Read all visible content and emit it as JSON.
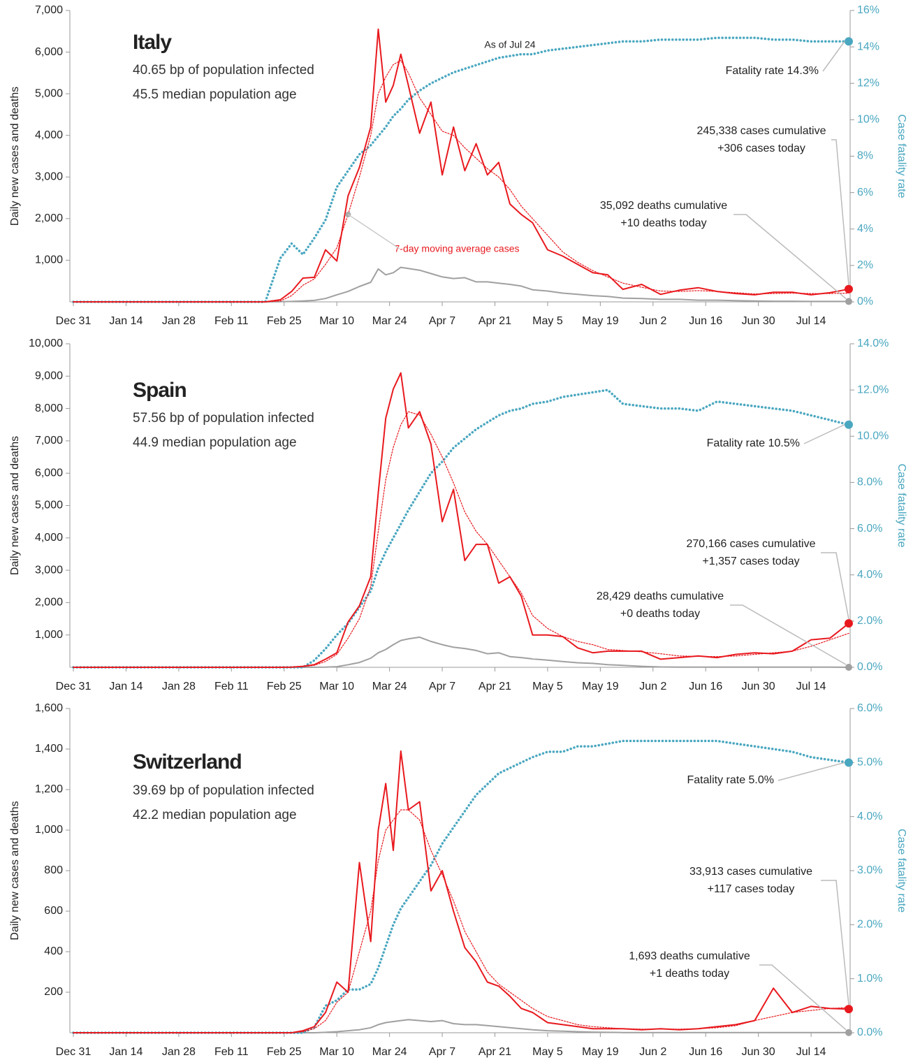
{
  "chart_data": [
    {
      "type": "line",
      "title": "Italy",
      "annotations": {
        "infected": "40.65 bp of population infected",
        "age": "45.5 median population age",
        "fatality": "Fatality rate 14.3%",
        "cases_cum": "245,338 cases cumulative",
        "cases_today": "+306 cases today",
        "deaths_cum": "35,092 deaths cumulative",
        "deaths_today": "+10 deaths today",
        "as_of": "As of Jul 24",
        "ma_label": "7-day moving average cases"
      },
      "y_label": "Daily new cases and deaths",
      "y2_label": "Case fatality rate",
      "xlim": [
        "Dec 31",
        "Jul 24"
      ],
      "xticks": [
        "Dec 31",
        "Jan 14",
        "Jan 28",
        "Feb 11",
        "Feb 25",
        "Mar 10",
        "Mar 24",
        "Apr 7",
        "Apr 21",
        "May 5",
        "May 19",
        "Jun 2",
        "Jun 16",
        "Jun 30",
        "Jul 14"
      ],
      "ylim": [
        0,
        7000
      ],
      "yticks": [
        {
          "value": 1000,
          "label": "1,000"
        },
        {
          "value": 2000,
          "label": "2,000"
        },
        {
          "value": 3000,
          "label": "3,000"
        },
        {
          "value": 4000,
          "label": "4,000"
        },
        {
          "value": 5000,
          "label": "5,000"
        },
        {
          "value": 6000,
          "label": "6,000"
        },
        {
          "value": 7000,
          "label": "7,000"
        }
      ],
      "y2lim": [
        0,
        16
      ],
      "y2ticks": [
        {
          "value": 0,
          "label": "0%"
        },
        {
          "value": 2,
          "label": "2%"
        },
        {
          "value": 4,
          "label": "4%"
        },
        {
          "value": 6,
          "label": "6%"
        },
        {
          "value": 8,
          "label": "8%"
        },
        {
          "value": 10,
          "label": "10%"
        },
        {
          "value": 12,
          "label": "12%"
        },
        {
          "value": 14,
          "label": "14%"
        },
        {
          "value": 16,
          "label": "16%"
        }
      ],
      "x": [
        "Dec 31",
        "Feb 20",
        "Feb 24",
        "Feb 27",
        "Mar 1",
        "Mar 4",
        "Mar 7",
        "Mar 10",
        "Mar 13",
        "Mar 16",
        "Mar 19",
        "Mar 21",
        "Mar 23",
        "Mar 25",
        "Mar 27",
        "Mar 29",
        "Apr 1",
        "Apr 4",
        "Apr 7",
        "Apr 10",
        "Apr 13",
        "Apr 16",
        "Apr 19",
        "Apr 22",
        "Apr 25",
        "Apr 28",
        "May 1",
        "May 5",
        "May 9",
        "May 13",
        "May 17",
        "May 21",
        "May 25",
        "May 30",
        "Jun 4",
        "Jun 9",
        "Jun 14",
        "Jun 19",
        "Jun 24",
        "Jun 29",
        "Jul 4",
        "Jul 9",
        "Jul 14",
        "Jul 19",
        "Jul 24"
      ],
      "series": [
        {
          "name": "Cases",
          "color": "#e8191e",
          "values": [
            0,
            0,
            50,
            250,
            570,
            590,
            1250,
            980,
            2550,
            3230,
            4200,
            6550,
            4800,
            5200,
            5950,
            5200,
            4050,
            4800,
            3050,
            4200,
            3150,
            3800,
            3050,
            3350,
            2350,
            2100,
            1900,
            1250,
            1100,
            900,
            700,
            650,
            300,
            420,
            180,
            280,
            340,
            250,
            200,
            170,
            230,
            230,
            170,
            220,
            306
          ]
        },
        {
          "name": "7-day moving average cases",
          "color": "#e8191e",
          "values": [
            0,
            0,
            20,
            150,
            400,
            550,
            900,
            1300,
            2100,
            3000,
            4000,
            5000,
            5400,
            5700,
            5800,
            5500,
            4900,
            4500,
            4100,
            4000,
            3700,
            3450,
            3200,
            3000,
            2700,
            2300,
            2000,
            1600,
            1200,
            950,
            750,
            600,
            450,
            350,
            260,
            250,
            270,
            250,
            220,
            190,
            200,
            210,
            200,
            200,
            210
          ]
        },
        {
          "name": "Deaths",
          "color": "#a0a0a0",
          "values": [
            0,
            0,
            3,
            10,
            20,
            35,
            80,
            170,
            250,
            370,
            470,
            790,
            650,
            700,
            830,
            800,
            760,
            680,
            600,
            560,
            580,
            480,
            480,
            450,
            420,
            380,
            290,
            260,
            210,
            180,
            150,
            130,
            90,
            80,
            60,
            60,
            40,
            40,
            30,
            20,
            15,
            15,
            10,
            10,
            10
          ]
        },
        {
          "name": "Case fatality rate",
          "color": "#4aa7c0",
          "axis": "y2",
          "values": [
            0,
            0,
            2.4,
            3.2,
            2.6,
            3.5,
            4.5,
            6.3,
            7.2,
            8.1,
            8.6,
            9.1,
            9.6,
            10.2,
            10.6,
            11.1,
            11.6,
            12.0,
            12.3,
            12.6,
            12.8,
            13.0,
            13.2,
            13.4,
            13.5,
            13.6,
            13.6,
            13.8,
            13.9,
            14.0,
            14.1,
            14.2,
            14.3,
            14.3,
            14.4,
            14.4,
            14.4,
            14.5,
            14.5,
            14.5,
            14.4,
            14.4,
            14.3,
            14.3,
            14.3
          ]
        }
      ]
    },
    {
      "type": "line",
      "title": "Spain",
      "annotations": {
        "infected": "57.56 bp of population infected",
        "age": "44.9 median population age",
        "fatality": "Fatality rate 10.5%",
        "cases_cum": "270,166 cases cumulative",
        "cases_today": "+1,357 cases today",
        "deaths_cum": "28,429 deaths cumulative",
        "deaths_today": "+0 deaths today"
      },
      "y_label": "Daily new cases and deaths",
      "y2_label": "Case fatality rate",
      "xlim": [
        "Dec 31",
        "Jul 24"
      ],
      "xticks": [
        "Dec 31",
        "Jan 14",
        "Jan 28",
        "Feb 11",
        "Feb 25",
        "Mar 10",
        "Mar 24",
        "Apr 7",
        "Apr 21",
        "May 5",
        "May 19",
        "Jun 2",
        "Jun 16",
        "Jun 30",
        "Jul 14"
      ],
      "ylim": [
        0,
        10000
      ],
      "yticks": [
        {
          "value": 1000,
          "label": "1,000"
        },
        {
          "value": 2000,
          "label": "2,000"
        },
        {
          "value": 3000,
          "label": "3,000"
        },
        {
          "value": 4000,
          "label": "4,000"
        },
        {
          "value": 5000,
          "label": "5,000"
        },
        {
          "value": 6000,
          "label": "6,000"
        },
        {
          "value": 7000,
          "label": "7,000"
        },
        {
          "value": 8000,
          "label": "8,000"
        },
        {
          "value": 9000,
          "label": "9,000"
        },
        {
          "value": 10000,
          "label": "10,000"
        }
      ],
      "y2lim": [
        0,
        14
      ],
      "y2ticks": [
        {
          "value": 0,
          "label": "0.0%"
        },
        {
          "value": 2,
          "label": "2.0%"
        },
        {
          "value": 4,
          "label": "4.0%"
        },
        {
          "value": 6,
          "label": "6.0%"
        },
        {
          "value": 8,
          "label": "8.0%"
        },
        {
          "value": 10,
          "label": "10.0%"
        },
        {
          "value": 12,
          "label": "12.0%"
        },
        {
          "value": 14,
          "label": "14.0%"
        }
      ],
      "x": [
        "Dec 31",
        "Feb 20",
        "Feb 24",
        "Feb 27",
        "Mar 1",
        "Mar 4",
        "Mar 7",
        "Mar 10",
        "Mar 13",
        "Mar 16",
        "Mar 19",
        "Mar 21",
        "Mar 23",
        "Mar 25",
        "Mar 27",
        "Mar 29",
        "Apr 1",
        "Apr 4",
        "Apr 7",
        "Apr 10",
        "Apr 13",
        "Apr 16",
        "Apr 19",
        "Apr 22",
        "Apr 25",
        "Apr 28",
        "May 1",
        "May 5",
        "May 9",
        "May 13",
        "May 17",
        "May 21",
        "May 25",
        "May 30",
        "Jun 4",
        "Jun 9",
        "Jun 14",
        "Jun 19",
        "Jun 24",
        "Jun 29",
        "Jul 4",
        "Jul 9",
        "Jul 14",
        "Jul 19",
        "Jul 24"
      ],
      "series": [
        {
          "name": "Cases",
          "color": "#e8191e",
          "values": [
            0,
            0,
            0,
            5,
            30,
            80,
            250,
            450,
            1400,
            1900,
            2800,
            5400,
            7700,
            8600,
            9100,
            7400,
            7900,
            6900,
            4500,
            5500,
            3300,
            3800,
            3800,
            2600,
            2800,
            2200,
            1000,
            1000,
            950,
            600,
            450,
            500,
            500,
            500,
            250,
            300,
            350,
            300,
            400,
            450,
            420,
            500,
            850,
            900,
            1357
          ]
        },
        {
          "name": "7-day moving average cases",
          "color": "#e8191e",
          "values": [
            0,
            0,
            0,
            5,
            20,
            60,
            180,
            400,
            900,
            1500,
            2500,
            4200,
            5800,
            6800,
            7500,
            7900,
            7800,
            7200,
            6500,
            5700,
            4800,
            4200,
            3800,
            3300,
            2800,
            2300,
            1600,
            1200,
            950,
            800,
            700,
            550,
            520,
            480,
            420,
            350,
            340,
            330,
            350,
            400,
            450,
            500,
            650,
            850,
            1050
          ]
        },
        {
          "name": "Deaths",
          "color": "#a0a0a0",
          "values": [
            0,
            0,
            0,
            0,
            0,
            2,
            5,
            20,
            80,
            150,
            280,
            450,
            550,
            700,
            830,
            880,
            930,
            800,
            700,
            620,
            580,
            520,
            420,
            450,
            330,
            300,
            260,
            220,
            180,
            140,
            120,
            80,
            60,
            30,
            10,
            5,
            5,
            5,
            5,
            5,
            5,
            5,
            5,
            5,
            0
          ]
        },
        {
          "name": "Case fatality rate",
          "color": "#4aa7c0",
          "axis": "y2",
          "values": [
            0,
            0,
            0,
            0,
            0,
            0.3,
            0.8,
            1.4,
            1.9,
            2.6,
            3.3,
            4.3,
            5.0,
            5.6,
            6.2,
            6.8,
            7.6,
            8.4,
            8.9,
            9.5,
            9.9,
            10.3,
            10.6,
            10.9,
            11.1,
            11.2,
            11.4,
            11.5,
            11.7,
            11.8,
            11.9,
            12.0,
            11.4,
            11.3,
            11.2,
            11.2,
            11.1,
            11.5,
            11.4,
            11.3,
            11.2,
            11.1,
            10.9,
            10.7,
            10.5
          ]
        }
      ]
    },
    {
      "type": "line",
      "title": "Switzerland",
      "annotations": {
        "infected": "39.69 bp of population infected",
        "age": "42.2 median population age",
        "fatality": "Fatality rate 5.0%",
        "cases_cum": "33,913 cases cumulative",
        "cases_today": "+117 cases today",
        "deaths_cum": "1,693 deaths cumulative",
        "deaths_today": "+1 deaths today"
      },
      "y_label": "Daily new cases and deaths",
      "y2_label": "Case fatality rate",
      "xlim": [
        "Dec 31",
        "Jul 24"
      ],
      "xticks": [
        "Dec 31",
        "Jan 14",
        "Jan 28",
        "Feb 11",
        "Feb 25",
        "Mar 10",
        "Mar 24",
        "Apr 7",
        "Apr 21",
        "May 5",
        "May 19",
        "Jun 2",
        "Jun 16",
        "Jun 30",
        "Jul 14"
      ],
      "ylim": [
        0,
        1600
      ],
      "yticks": [
        200,
        400,
        600,
        800,
        {
          "value": 1000,
          "label": "1,000"
        },
        {
          "value": 1200,
          "label": "1,200"
        },
        {
          "value": 1400,
          "label": "1,400"
        },
        {
          "value": 1600,
          "label": "1,600"
        }
      ],
      "y2lim": [
        0,
        6
      ],
      "y2ticks": [
        {
          "value": 0,
          "label": "0.0%"
        },
        {
          "value": 1,
          "label": "1.0%"
        },
        {
          "value": 2,
          "label": "2.0%"
        },
        {
          "value": 3,
          "label": "3.0%"
        },
        {
          "value": 4,
          "label": "4.0%"
        },
        {
          "value": 5,
          "label": "5.0%"
        },
        {
          "value": 6,
          "label": "6.0%"
        }
      ],
      "x": [
        "Dec 31",
        "Feb 20",
        "Feb 24",
        "Feb 27",
        "Mar 1",
        "Mar 4",
        "Mar 7",
        "Mar 10",
        "Mar 13",
        "Mar 16",
        "Mar 19",
        "Mar 21",
        "Mar 23",
        "Mar 25",
        "Mar 27",
        "Mar 29",
        "Apr 1",
        "Apr 4",
        "Apr 7",
        "Apr 10",
        "Apr 13",
        "Apr 16",
        "Apr 19",
        "Apr 22",
        "Apr 25",
        "Apr 28",
        "May 1",
        "May 5",
        "May 9",
        "May 13",
        "May 17",
        "May 21",
        "May 25",
        "May 30",
        "Jun 4",
        "Jun 9",
        "Jun 14",
        "Jun 19",
        "Jun 24",
        "Jun 29",
        "Jul 4",
        "Jul 9",
        "Jul 14",
        "Jul 19",
        "Jul 24"
      ],
      "series": [
        {
          "name": "Cases",
          "color": "#e8191e",
          "values": [
            0,
            0,
            0,
            0,
            10,
            30,
            100,
            250,
            200,
            840,
            450,
            1000,
            1230,
            900,
            1390,
            1100,
            1140,
            700,
            800,
            600,
            420,
            350,
            250,
            230,
            180,
            120,
            100,
            50,
            40,
            30,
            20,
            20,
            20,
            15,
            20,
            15,
            20,
            30,
            40,
            60,
            220,
            100,
            130,
            120,
            117
          ]
        },
        {
          "name": "7-day moving average cases",
          "color": "#e8191e",
          "values": [
            0,
            0,
            0,
            0,
            5,
            20,
            60,
            150,
            200,
            400,
            600,
            850,
            1000,
            1050,
            1100,
            1100,
            1050,
            900,
            780,
            650,
            500,
            400,
            300,
            240,
            200,
            160,
            120,
            80,
            60,
            40,
            30,
            25,
            20,
            18,
            18,
            18,
            20,
            25,
            35,
            60,
            80,
            100,
            110,
            120,
            125
          ]
        },
        {
          "name": "Deaths",
          "color": "#a0a0a0",
          "values": [
            0,
            0,
            0,
            0,
            0,
            0,
            2,
            5,
            10,
            15,
            25,
            40,
            50,
            55,
            60,
            65,
            60,
            55,
            60,
            45,
            40,
            40,
            35,
            30,
            25,
            20,
            15,
            10,
            8,
            5,
            3,
            2,
            1,
            1,
            1,
            1,
            1,
            1,
            1,
            1,
            1,
            1,
            1,
            1,
            1
          ]
        },
        {
          "name": "Case fatality rate",
          "color": "#4aa7c0",
          "axis": "y2",
          "values": [
            0,
            0,
            0,
            0,
            0,
            0.1,
            0.5,
            0.6,
            0.8,
            0.8,
            0.9,
            1.2,
            1.6,
            2.0,
            2.3,
            2.5,
            2.8,
            3.1,
            3.5,
            3.8,
            4.1,
            4.4,
            4.6,
            4.8,
            4.9,
            5.0,
            5.1,
            5.2,
            5.2,
            5.3,
            5.3,
            5.35,
            5.4,
            5.4,
            5.4,
            5.4,
            5.4,
            5.4,
            5.35,
            5.3,
            5.25,
            5.2,
            5.1,
            5.05,
            5.0
          ]
        }
      ]
    }
  ]
}
